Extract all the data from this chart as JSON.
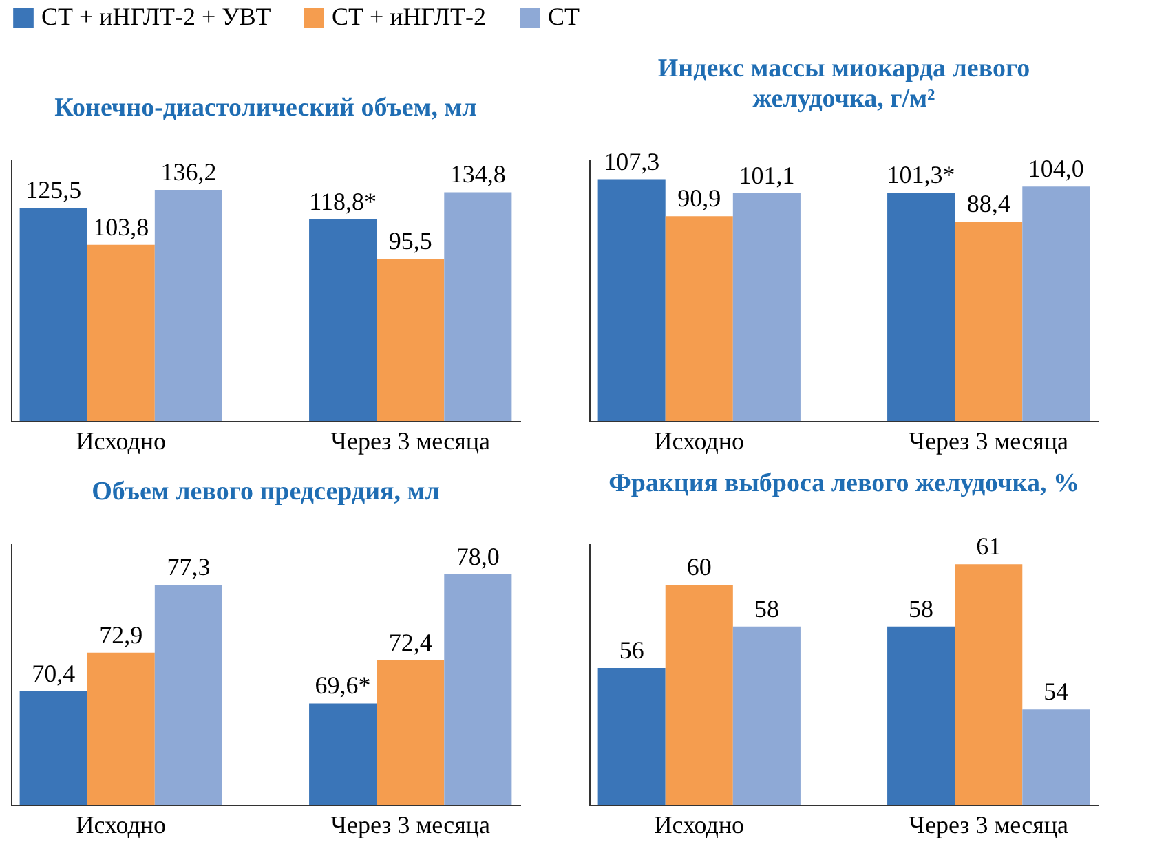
{
  "chart_data": [
    {
      "type": "bar",
      "title": "Конечно-диастолический объем, мл",
      "categories": [
        "Исходно",
        "Через 3 месяца"
      ],
      "ylim": [
        0,
        154
      ],
      "tick_labels": "x",
      "legend": "top",
      "series": [
        {
          "name": "СТ + иНГЛТ-2 + УВТ",
          "color": "#3a75b8",
          "values": [
            125.5,
            118.8
          ],
          "value_labels": [
            "125,5",
            "118,8*"
          ]
        },
        {
          "name": "СТ + иНГЛТ-2",
          "color": "#f59d4f",
          "values": [
            103.8,
            95.5
          ],
          "value_labels": [
            "103,8",
            "95,5"
          ]
        },
        {
          "name": "СТ",
          "color": "#8ea9d6",
          "values": [
            136.2,
            134.8
          ],
          "value_labels": [
            "136,2",
            "134,8"
          ]
        }
      ]
    },
    {
      "type": "bar",
      "title": "Индекс массы миокарда левого желудочка, г/м²",
      "categories": [
        "Исходно",
        "Через 3 месяца"
      ],
      "ylim": [
        0,
        116
      ],
      "tick_labels": "x",
      "series": [
        {
          "name": "СТ + иНГЛТ-2 + УВТ",
          "color": "#3a75b8",
          "values": [
            107.3,
            101.3
          ],
          "value_labels": [
            "107,3",
            "101,3*"
          ]
        },
        {
          "name": "СТ + иНГЛТ-2",
          "color": "#f59d4f",
          "values": [
            90.9,
            88.4
          ],
          "value_labels": [
            "90,9",
            "88,4"
          ]
        },
        {
          "name": "СТ",
          "color": "#8ea9d6",
          "values": [
            101.1,
            104.0
          ],
          "value_labels": [
            "101,1",
            "104,0"
          ]
        }
      ]
    },
    {
      "type": "bar",
      "title": "Объем левого предсердия, мл",
      "categories": [
        "Исходно",
        "Через 3 месяца"
      ],
      "ylim": [
        63,
        80
      ],
      "tick_labels": "x",
      "series": [
        {
          "name": "СТ + иНГЛТ-2 + УВТ",
          "color": "#3a75b8",
          "values": [
            70.4,
            69.6
          ],
          "value_labels": [
            "70,4",
            "69,6*"
          ]
        },
        {
          "name": "СТ + иНГЛТ-2",
          "color": "#f59d4f",
          "values": [
            72.9,
            72.4
          ],
          "value_labels": [
            "72,9",
            "72,4"
          ]
        },
        {
          "name": "СТ",
          "color": "#8ea9d6",
          "values": [
            77.3,
            78.0
          ],
          "value_labels": [
            "77,3",
            "78,0"
          ]
        }
      ]
    },
    {
      "type": "bar",
      "title": "Фракция выброса левого желудочка, %",
      "categories": [
        "Исходно",
        "Через 3 месяца"
      ],
      "ylim": [
        49.4,
        62
      ],
      "tick_labels": "x",
      "series": [
        {
          "name": "СТ + иНГЛТ-2 + УВТ",
          "color": "#3a75b8",
          "values": [
            56,
            58
          ],
          "value_labels": [
            "56",
            "58"
          ]
        },
        {
          "name": "СТ + иНГЛТ-2",
          "color": "#f59d4f",
          "values": [
            60,
            61
          ],
          "value_labels": [
            "60",
            "61"
          ]
        },
        {
          "name": "СТ",
          "color": "#8ea9d6",
          "values": [
            58,
            54
          ],
          "value_labels": [
            "58",
            "54"
          ]
        }
      ]
    }
  ]
}
